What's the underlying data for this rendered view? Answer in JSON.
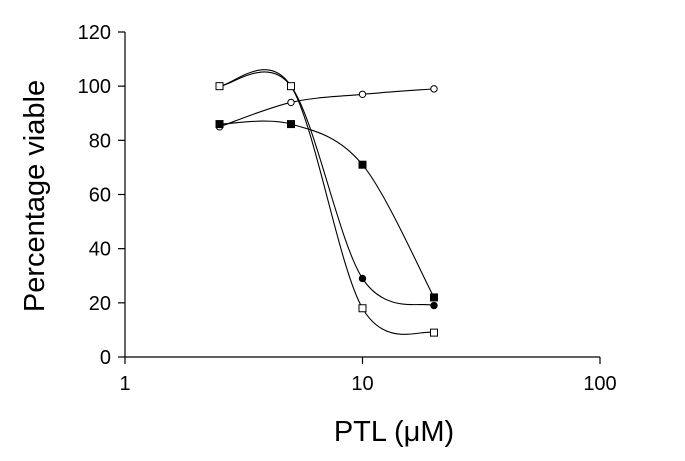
{
  "chart_data": {
    "type": "line",
    "title": "",
    "xlabel": "PTL (μM)",
    "ylabel": "Percentage viable",
    "x_scale": "log",
    "xlim": [
      1,
      100
    ],
    "ylim": [
      0,
      120
    ],
    "x_ticks": [
      1,
      10,
      100
    ],
    "x_tick_labels": [
      "1",
      "10",
      "100"
    ],
    "y_ticks": [
      0,
      20,
      40,
      60,
      80,
      100,
      120
    ],
    "y_tick_labels": [
      "0",
      "20",
      "40",
      "60",
      "80",
      "100",
      "120"
    ],
    "grid": false,
    "legend": "none",
    "series": [
      {
        "marker": "open-circle",
        "x": [
          2.5,
          5,
          10,
          20
        ],
        "y": [
          85,
          94,
          97,
          99
        ]
      },
      {
        "marker": "filled-square",
        "x": [
          2.5,
          5,
          10,
          20
        ],
        "y": [
          86,
          86,
          71,
          22
        ]
      },
      {
        "marker": "filled-circle",
        "x": [
          2.5,
          5,
          10,
          20
        ],
        "y": [
          100,
          100,
          29,
          19
        ]
      },
      {
        "marker": "open-square",
        "x": [
          2.5,
          5,
          10,
          20
        ],
        "y": [
          100,
          100,
          18,
          9
        ]
      }
    ],
    "colors": {
      "line": "#000000",
      "marker_fill": "#000000",
      "open_marker_fill": "#ffffff"
    }
  }
}
